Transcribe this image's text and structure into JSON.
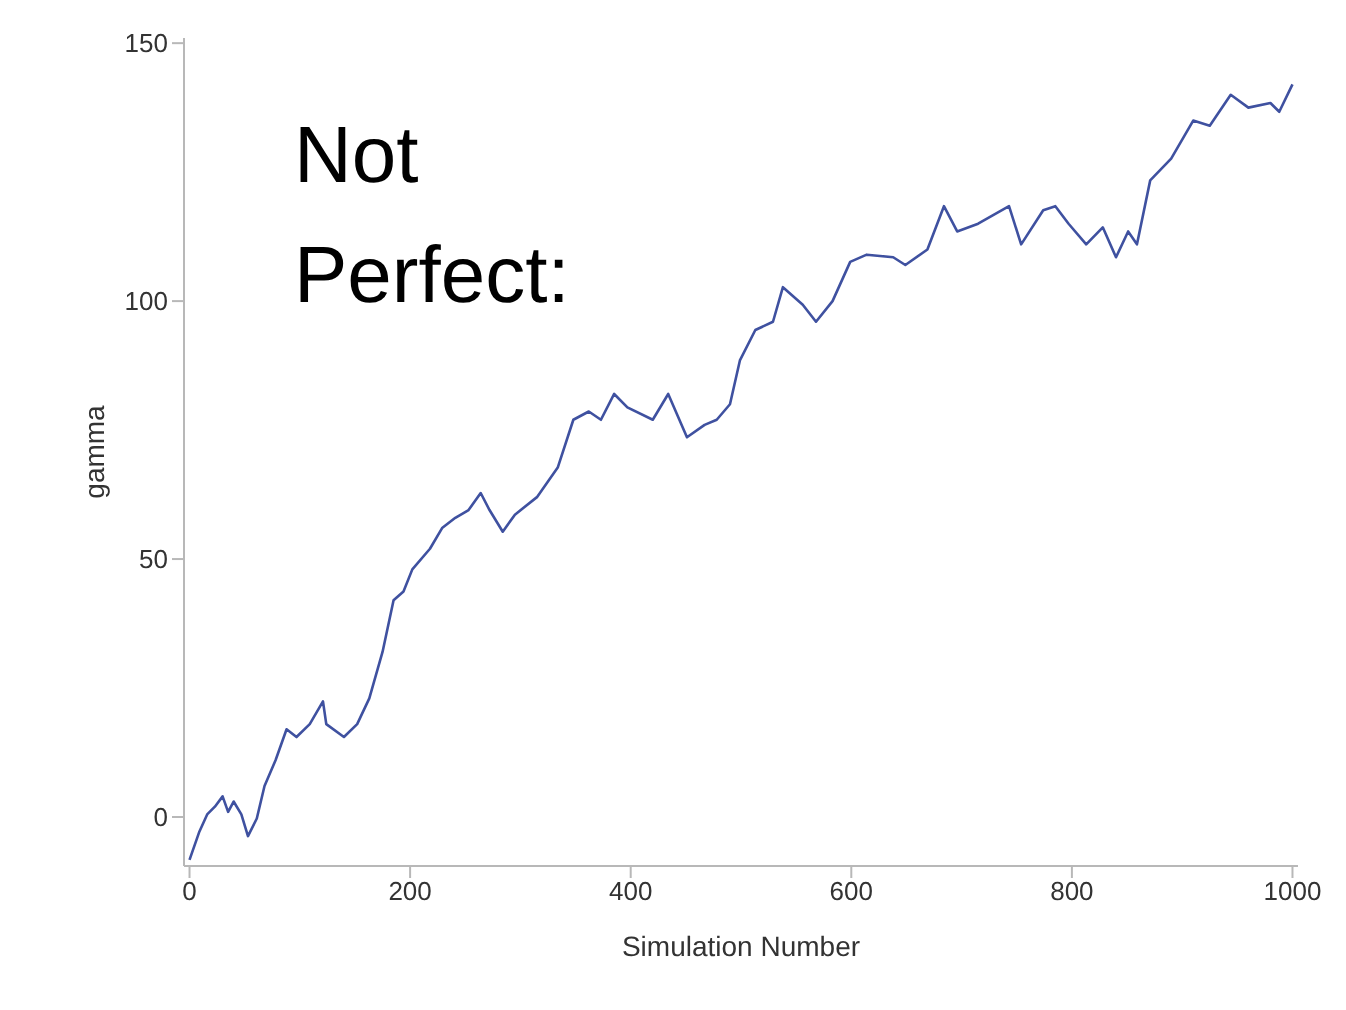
{
  "chart_data": {
    "type": "line",
    "xlabel": "Simulation Number",
    "ylabel": "gamma",
    "annotations": [
      "Not\nPerfect:"
    ],
    "xlim": [
      -5,
      1005
    ],
    "ylim": [
      -9.5,
      151
    ],
    "xticks": [
      0,
      200,
      400,
      600,
      800,
      1000
    ],
    "yticks": [
      0,
      50,
      100,
      150
    ],
    "grid": false,
    "marker": "none",
    "line_style": "solid",
    "x": [
      0,
      9,
      16,
      23,
      30,
      35,
      40,
      47,
      53,
      61,
      68,
      78,
      88,
      97,
      109,
      121,
      124,
      140,
      152,
      163,
      175,
      185,
      194,
      202,
      218,
      229,
      241,
      253,
      264,
      272,
      284,
      295,
      315,
      334,
      348,
      362,
      373,
      385,
      397,
      420,
      434,
      451,
      467,
      478,
      490,
      499,
      513,
      529,
      538,
      556,
      568,
      583,
      599,
      614,
      638,
      649,
      669,
      684,
      696,
      715,
      743,
      754,
      774,
      785,
      797,
      813,
      828,
      840,
      851,
      859,
      871,
      890,
      910,
      925,
      944,
      960,
      980,
      988,
      1000
    ],
    "series": [
      {
        "color": "#3f51a0",
        "values": [
          -8.3,
          -2.8,
          0.5,
          2,
          4,
          1,
          3,
          0.5,
          -3.7,
          -0.3,
          6,
          11,
          17,
          15.5,
          18,
          22.4,
          18,
          15.5,
          18,
          23,
          32,
          42,
          43.7,
          48,
          52,
          56,
          58,
          59.5,
          62.8,
          59.5,
          55.3,
          58.6,
          62,
          67.8,
          77,
          78.6,
          77,
          82,
          79.4,
          77,
          82,
          73.6,
          76,
          77,
          80,
          88.5,
          94.4,
          96,
          102.7,
          99.3,
          96,
          100,
          107.6,
          109,
          108.5,
          107,
          110,
          118.4,
          113.5,
          115,
          118.4,
          111,
          117.6,
          118.4,
          115,
          111,
          114.3,
          108.5,
          113.5,
          111,
          123.4,
          127.6,
          135,
          134,
          140,
          137.5,
          138.4,
          136.7,
          142
        ]
      }
    ]
  }
}
